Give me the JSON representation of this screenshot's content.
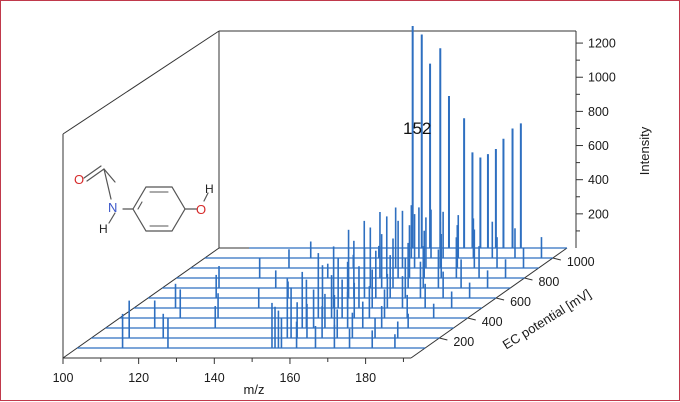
{
  "chart_data": {
    "type": "3d-waterfall-spectra",
    "xlabel": "m/z",
    "ylabel": "EC potential [mV]",
    "zlabel": "Intensity",
    "x_ticks": [
      100,
      120,
      140,
      160,
      180
    ],
    "y_ticks": [
      200,
      400,
      600,
      800,
      1000
    ],
    "z_ticks": [
      200,
      400,
      600,
      800,
      1000,
      1200
    ],
    "xlim": [
      100,
      192
    ],
    "ylim": [
      0,
      1100
    ],
    "zlim": [
      0,
      1300
    ],
    "annotation": "152",
    "back_series": {
      "name": "",
      "peaks": [
        {
          "x": 151.2,
          "y": 1300
        },
        {
          "x": 153.6,
          "y": 1250
        },
        {
          "x": 155.8,
          "y": 1080
        },
        {
          "x": 158.5,
          "y": 1170
        },
        {
          "x": 160.8,
          "y": 890
        },
        {
          "x": 164.8,
          "y": 760
        },
        {
          "x": 167.0,
          "y": 560
        },
        {
          "x": 169.1,
          "y": 530
        },
        {
          "x": 171.1,
          "y": 550
        },
        {
          "x": 173.2,
          "y": 580
        },
        {
          "x": 175.2,
          "y": 640
        },
        {
          "x": 177.6,
          "y": 700
        },
        {
          "x": 179.8,
          "y": 730
        }
      ]
    },
    "front_spectra": [
      {
        "ec": 100,
        "peaks": [
          [
            112,
            62
          ],
          [
            124,
            55
          ],
          [
            151.5,
            82
          ],
          [
            152.3,
            75
          ],
          [
            153.2,
            68
          ],
          [
            154,
            55
          ],
          [
            158,
            48
          ],
          [
            163,
            40
          ],
          [
            168,
            42
          ],
          [
            172,
            35
          ],
          [
            178,
            32
          ],
          [
            184,
            25
          ]
        ]
      },
      {
        "ec": 200,
        "peaks": [
          [
            110,
            68
          ],
          [
            119,
            44
          ],
          [
            151.8,
            108
          ],
          [
            152.8,
            92
          ],
          [
            154.4,
            65
          ],
          [
            157,
            62
          ],
          [
            161,
            58
          ],
          [
            165,
            52
          ],
          [
            169,
            46
          ],
          [
            175,
            36
          ],
          [
            181,
            30
          ]
        ]
      },
      {
        "ec": 300,
        "peaks": [
          [
            113,
            50
          ],
          [
            129,
            40
          ],
          [
            152,
            102
          ],
          [
            153.1,
            88
          ],
          [
            155,
            70
          ],
          [
            158,
            62
          ],
          [
            160.5,
            60
          ],
          [
            164,
            66
          ],
          [
            168,
            48
          ],
          [
            173,
            40
          ],
          [
            180,
            26
          ]
        ]
      },
      {
        "ec": 400,
        "peaks": [
          [
            116,
            52
          ],
          [
            126,
            45
          ],
          [
            152.5,
            118
          ],
          [
            153.6,
            96
          ],
          [
            156,
            78
          ],
          [
            158.8,
            70
          ],
          [
            162,
            64
          ],
          [
            166,
            58
          ],
          [
            170,
            52
          ],
          [
            176,
            42
          ],
          [
            183,
            26
          ]
        ]
      },
      {
        "ec": 500,
        "peaks": [
          [
            111,
            44
          ],
          [
            133,
            36
          ],
          [
            152.8,
            112
          ],
          [
            154,
            90
          ],
          [
            156.5,
            84
          ],
          [
            159.5,
            76
          ],
          [
            163,
            70
          ],
          [
            167,
            62
          ],
          [
            171,
            58
          ],
          [
            177,
            44
          ],
          [
            184,
            30
          ]
        ]
      },
      {
        "ec": 600,
        "peaks": [
          [
            118,
            42
          ],
          [
            137,
            30
          ],
          [
            153,
            124
          ],
          [
            154.4,
            104
          ],
          [
            157.2,
            92
          ],
          [
            160.2,
            86
          ],
          [
            164,
            78
          ],
          [
            168,
            72
          ],
          [
            172,
            66
          ],
          [
            178,
            48
          ],
          [
            185,
            28
          ]
        ]
      },
      {
        "ec": 700,
        "peaks": [
          [
            115,
            40
          ],
          [
            130,
            32
          ],
          [
            153.4,
            122
          ],
          [
            155,
            110
          ],
          [
            158,
            98
          ],
          [
            161,
            90
          ],
          [
            165,
            82
          ],
          [
            169,
            76
          ],
          [
            173,
            70
          ],
          [
            179,
            52
          ],
          [
            186,
            32
          ]
        ]
      },
      {
        "ec": 800,
        "peaks": [
          [
            122,
            36
          ],
          [
            140,
            26
          ],
          [
            153.8,
            120
          ],
          [
            155.6,
            112
          ],
          [
            158.6,
            104
          ],
          [
            161.6,
            96
          ],
          [
            165.5,
            86
          ],
          [
            170,
            80
          ],
          [
            174,
            74
          ],
          [
            180,
            58
          ],
          [
            187,
            34
          ]
        ]
      },
      {
        "ec": 900,
        "peaks": [
          [
            126,
            34
          ],
          [
            143,
            24
          ],
          [
            154.2,
            110
          ],
          [
            156,
            104
          ],
          [
            159.2,
            98
          ],
          [
            162.2,
            92
          ],
          [
            166,
            84
          ],
          [
            170.5,
            78
          ],
          [
            175,
            70
          ],
          [
            181,
            56
          ],
          [
            188,
            36
          ]
        ]
      },
      {
        "ec": 1000,
        "peaks": [
          [
            128,
            30
          ],
          [
            146,
            22
          ],
          [
            154.6,
            96
          ],
          [
            156.6,
            92
          ],
          [
            159.8,
            88
          ],
          [
            163,
            84
          ],
          [
            167,
            78
          ],
          [
            171,
            72
          ],
          [
            176,
            66
          ],
          [
            182,
            54
          ],
          [
            189,
            38
          ]
        ]
      }
    ]
  },
  "colors": {
    "trace": "#2e6fc0",
    "axis": "#333333",
    "frame_border": "#c0394b",
    "oxygen": "#d62b2b",
    "nitrogen": "#3a55c9",
    "bond": "#555555"
  },
  "molecule": {
    "name": "acetaminophen",
    "atom_labels": {
      "nitrogen": "N",
      "nh_hydrogen": "H",
      "oxygen_hydroxyl": "O",
      "oh_hydrogen": "H",
      "oxygen_carbonyl": "O"
    }
  }
}
